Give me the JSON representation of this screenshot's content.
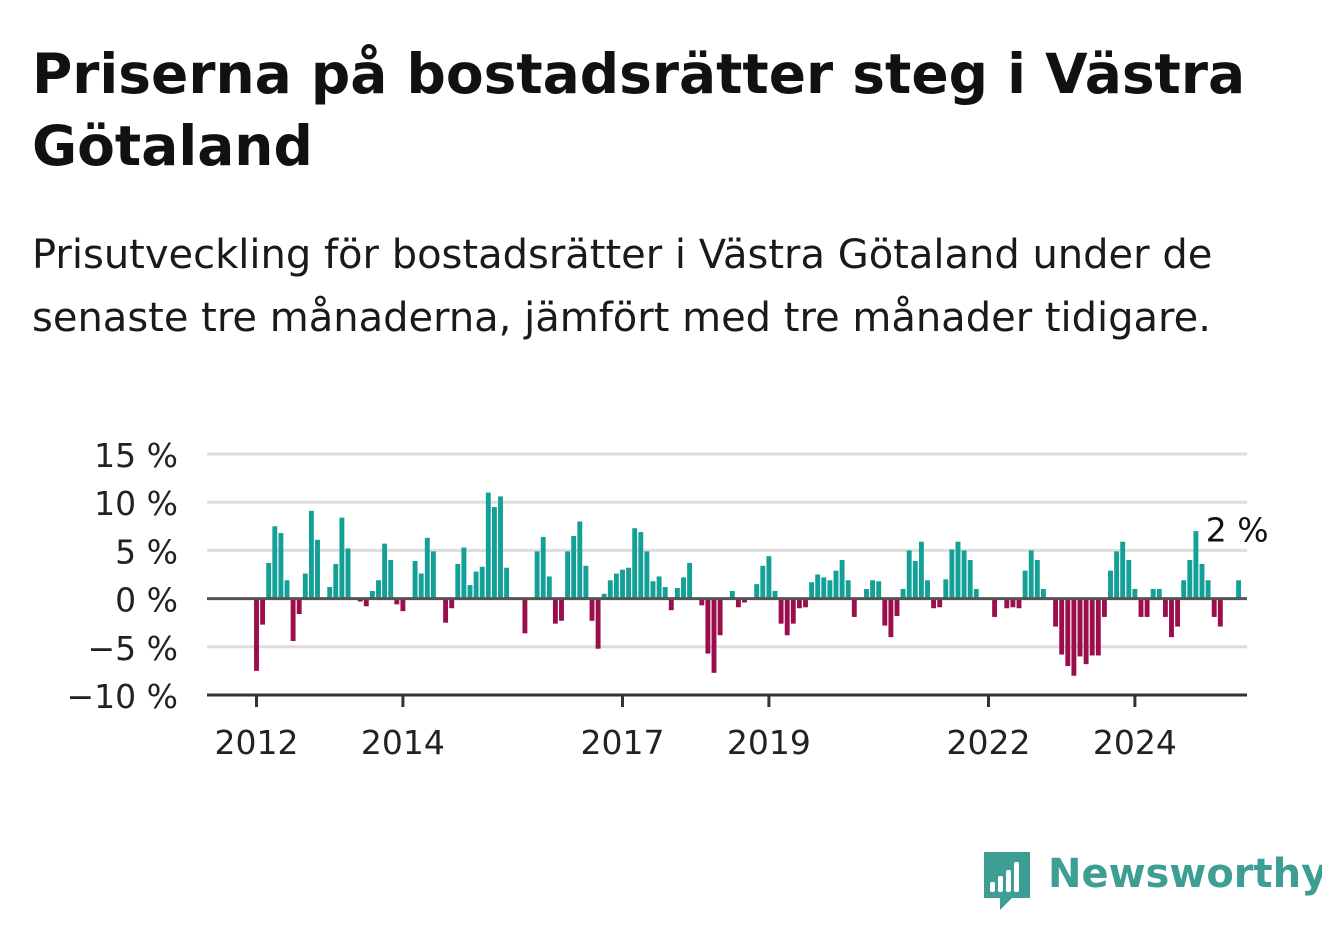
{
  "header": {
    "title": "Priserna på bostadsrätter steg i Västra Götaland",
    "subtitle": "Prisutveckling för bostadsrätter i Västra Götaland under de senaste tre månaderna, jämfört med tre månader tidigare."
  },
  "brand": {
    "name": "Newsworthy",
    "color": "#3d9e94",
    "icon": "bar-chart-speech-bubble-icon"
  },
  "colors": {
    "positive": "#13a096",
    "negative": "#9c0d4c",
    "grid": "#dddddd",
    "zero_line": "#555555"
  },
  "chart_data": {
    "type": "bar",
    "grid": true,
    "ylim": [
      -10,
      15
    ],
    "y_ticks": [
      15,
      10,
      5,
      0,
      -5,
      -10
    ],
    "y_tick_labels": [
      "15 %",
      "10 %",
      "5 %",
      "0 %",
      "−5 %",
      "−10 %"
    ],
    "x_ticks": [
      "2012",
      "2014",
      "2017",
      "2019",
      "2022",
      "2024"
    ],
    "start": "2012-01",
    "annotation": {
      "label": "2 %",
      "value": 2
    },
    "values": [
      -7.5,
      -2.7,
      3.7,
      7.5,
      6.8,
      1.9,
      -4.4,
      -1.6,
      2.6,
      9.1,
      6.1,
      0.0,
      1.2,
      3.6,
      8.4,
      5.2,
      0.0,
      -0.3,
      -0.8,
      0.8,
      1.9,
      5.7,
      4.0,
      -0.6,
      -1.3,
      0.0,
      3.9,
      2.6,
      6.3,
      4.9,
      0.0,
      -2.5,
      -1.0,
      3.6,
      5.3,
      1.4,
      2.8,
      3.3,
      11.0,
      9.5,
      10.6,
      3.2,
      0.0,
      0.0,
      -3.6,
      0.0,
      4.9,
      6.4,
      2.3,
      -2.6,
      -2.3,
      4.9,
      6.5,
      8.0,
      3.4,
      -2.3,
      -5.2,
      0.5,
      1.9,
      2.6,
      3.0,
      3.2,
      7.3,
      6.9,
      4.9,
      1.8,
      2.3,
      1.2,
      -1.2,
      1.1,
      2.2,
      3.7,
      0.0,
      -0.7,
      -5.7,
      -7.7,
      -3.8,
      0.0,
      0.8,
      -0.9,
      -0.4,
      0.0,
      1.5,
      3.4,
      4.4,
      0.8,
      -2.6,
      -3.8,
      -2.6,
      -1.0,
      -0.9,
      1.7,
      2.5,
      2.2,
      1.9,
      2.9,
      4.0,
      1.9,
      -1.9,
      0.0,
      1.0,
      1.9,
      1.8,
      -2.8,
      -4.0,
      -1.8,
      1.0,
      5.0,
      3.9,
      5.9,
      1.9,
      -1.0,
      -0.9,
      2.0,
      5.1,
      5.9,
      5.0,
      4.0,
      1.0,
      0.0,
      0.0,
      -1.9,
      0.0,
      -1.0,
      -0.9,
      -1.0,
      2.9,
      5.0,
      4.0,
      1.0,
      0.0,
      -2.9,
      -5.8,
      -7.0,
      -8.0,
      -6.0,
      -6.8,
      -5.9,
      -5.9,
      -1.9,
      2.9,
      4.9,
      5.9,
      4.0,
      1.0,
      -1.9,
      -1.9,
      1.0,
      1.0,
      -1.9,
      -4.0,
      -2.9,
      1.9,
      4.0,
      7.0,
      3.6,
      1.9,
      -1.9,
      -2.9,
      0.0,
      0.0,
      1.9
    ]
  }
}
